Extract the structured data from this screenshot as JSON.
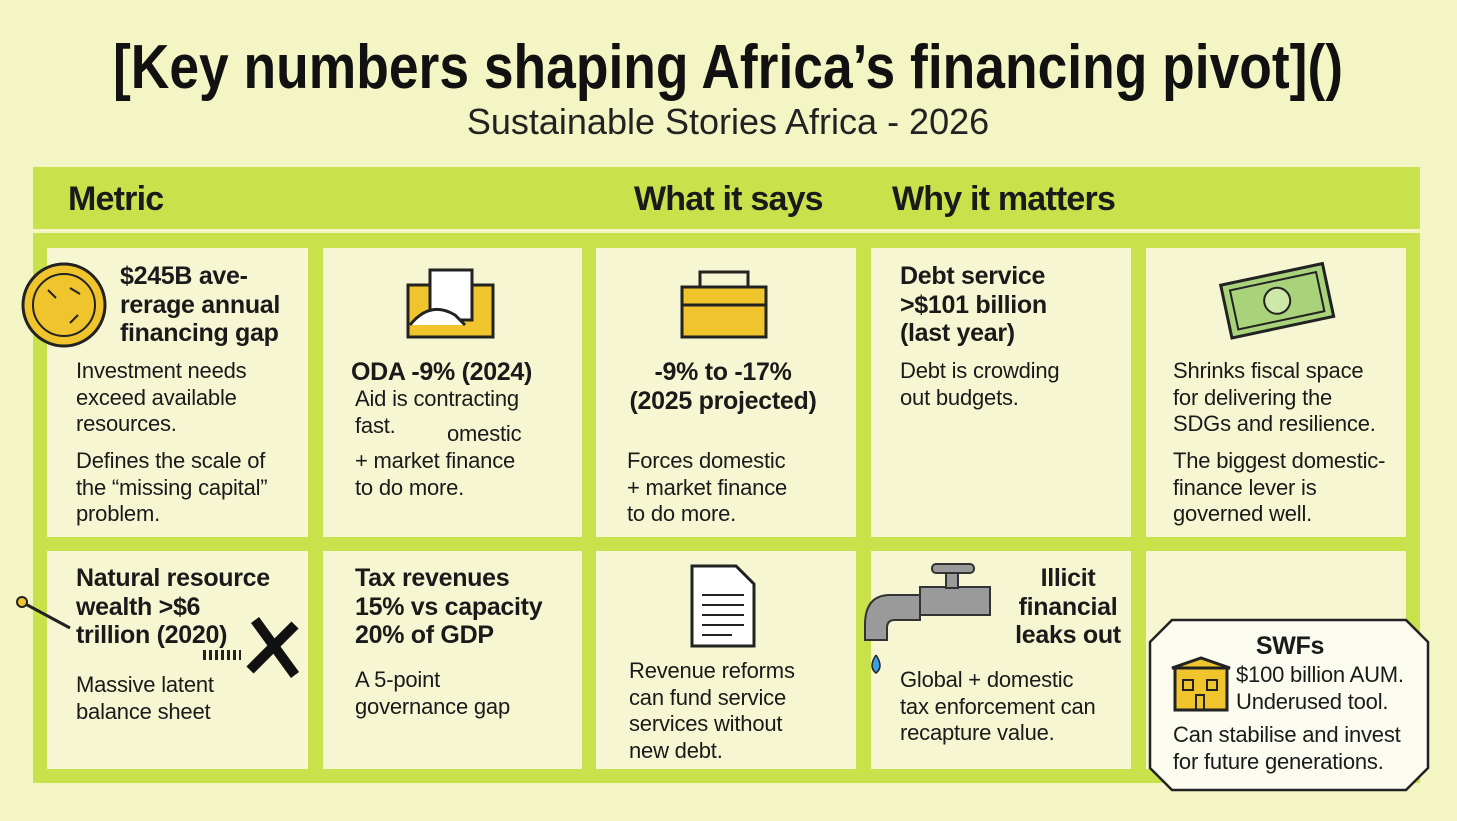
{
  "title": "[Key numbers shaping Africa’s financing pivot]()",
  "subtitle": "Sustainable Stories Africa - 2026",
  "header": [
    "Metric",
    "What it says",
    "Why it matters"
  ],
  "cells": [
    {
      "heading": [
        "$245B ave-",
        "rerage annual",
        "financing gap"
      ],
      "body": [
        [
          "Investment needs",
          "exceed available",
          "resources."
        ],
        [
          "Defines the scale of",
          "the “missing capital”",
          "problem."
        ]
      ]
    },
    {
      "heading": [
        "ODA -9% (2024)"
      ],
      "body": [
        [
          "Aid is contracting",
          "fast."
        ],
        [
          "omestic"
        ],
        [
          "+ market finance",
          "to do more."
        ]
      ]
    },
    {
      "heading": [
        "-9% to -17%",
        "(2025 projected)"
      ],
      "body": [
        [
          "Forces domestic",
          "+ market finance",
          "to do more."
        ]
      ]
    },
    {
      "heading": [
        "Debt service",
        ">$101 billion",
        "(last year)"
      ],
      "body": [
        [
          "Debt is crowding",
          "out budgets."
        ]
      ]
    },
    {
      "body": [
        [
          "Shrinks fiscal space",
          "for delivering the",
          "SDGs and resilience."
        ],
        [
          "The biggest domestic-",
          "finance lever is",
          "governed well."
        ]
      ]
    },
    {
      "heading": [
        "Natural resource",
        "wealth >$6",
        "trillion (2020)"
      ],
      "body": [
        [
          "Massive latent",
          "balance sheet"
        ]
      ]
    },
    {
      "heading": [
        "Tax revenues",
        "15% vs capacity",
        "20% of GDP"
      ],
      "body": [
        [
          "A 5-point",
          "governance gap"
        ]
      ]
    },
    {
      "body": [
        [
          "Revenue reforms",
          "can fund service",
          "services without",
          "new debt."
        ]
      ]
    },
    {
      "heading": [
        "Illicit",
        "financial",
        "leaks out"
      ],
      "body": [
        [
          "Global + domestic",
          "tax enforcement can",
          "recapture value."
        ]
      ]
    },
    {
      "heading": [
        "SWFs"
      ],
      "body": [
        [
          "$100 billion AUM.",
          "Underused tool."
        ],
        [
          "Can stabilise and invest",
          "for future generations."
        ]
      ]
    }
  ]
}
